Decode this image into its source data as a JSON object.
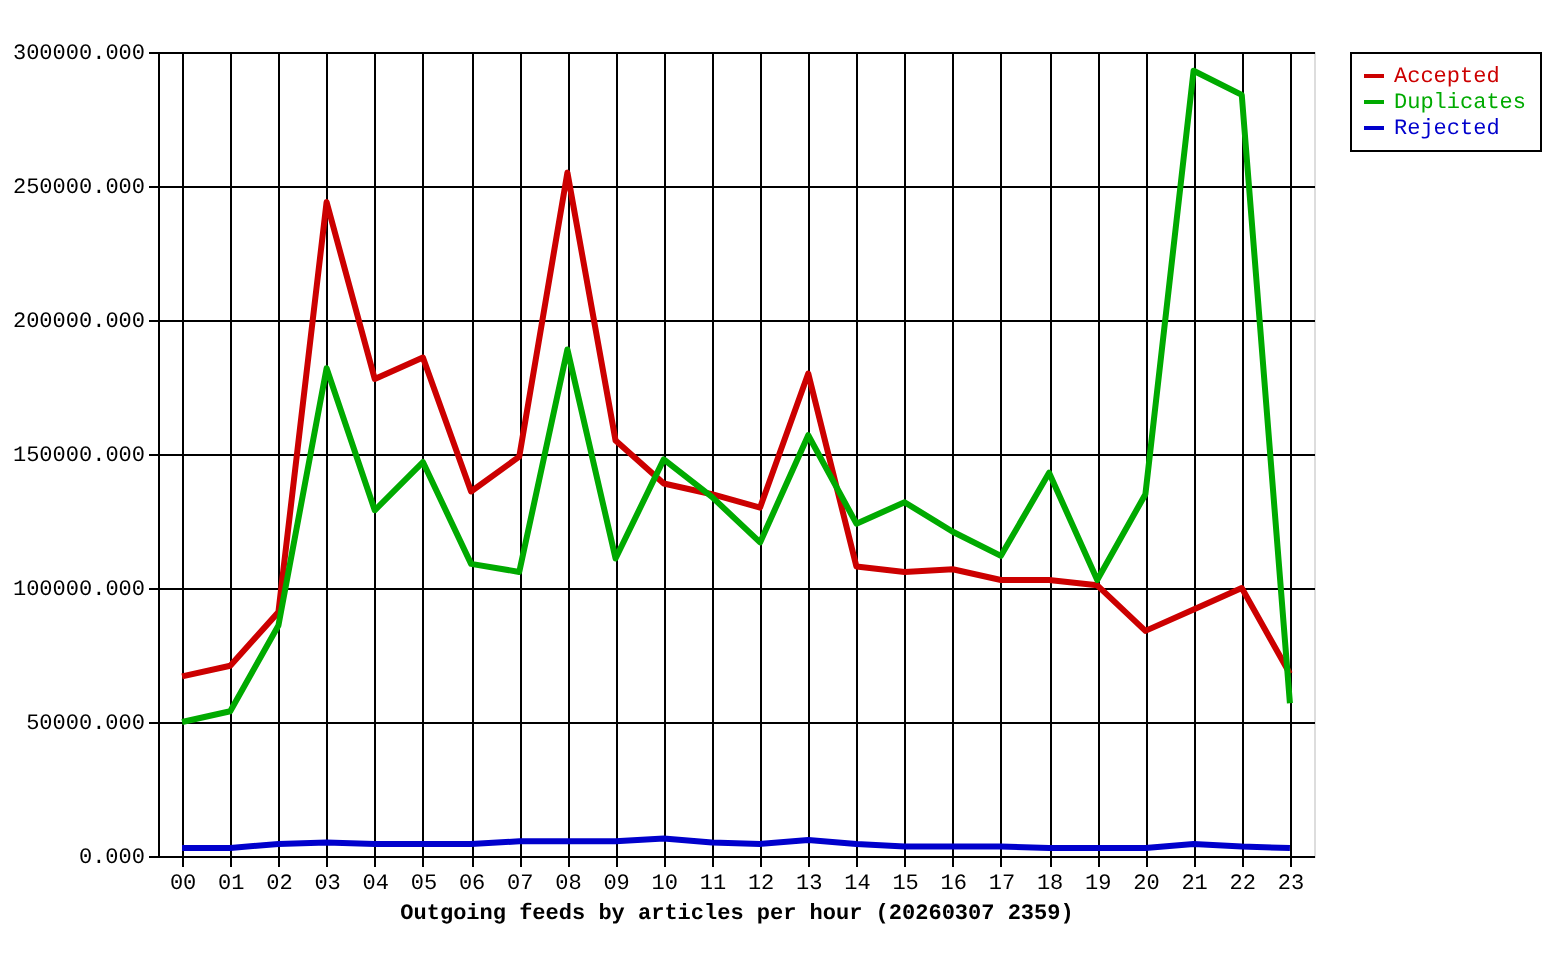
{
  "chart_data": {
    "type": "line",
    "xlabel": "Outgoing feeds by articles per hour (20260307 2359)",
    "categories": [
      "00",
      "01",
      "02",
      "03",
      "04",
      "05",
      "06",
      "07",
      "08",
      "09",
      "10",
      "11",
      "12",
      "13",
      "14",
      "15",
      "16",
      "17",
      "18",
      "19",
      "20",
      "21",
      "22",
      "23"
    ],
    "series": [
      {
        "name": "Accepted",
        "color": "#cc0000",
        "values": [
          67000,
          71000,
          91000,
          244000,
          178000,
          186000,
          136000,
          149000,
          255000,
          155000,
          139000,
          135000,
          130000,
          180000,
          108000,
          106000,
          107000,
          103000,
          103000,
          101000,
          84000,
          92000,
          100000,
          68000
        ]
      },
      {
        "name": "Duplicates",
        "color": "#00aa00",
        "values": [
          50000,
          54000,
          86000,
          182000,
          129000,
          147000,
          109000,
          106000,
          189000,
          111000,
          148000,
          134000,
          117000,
          157000,
          124000,
          132000,
          121000,
          112000,
          143000,
          103000,
          135000,
          293000,
          284000,
          57000
        ]
      },
      {
        "name": "Rejected",
        "color": "#0000cc",
        "values": [
          3000,
          3000,
          4500,
          5000,
          4500,
          4500,
          4500,
          5500,
          5500,
          5500,
          6500,
          5000,
          4500,
          6000,
          4500,
          3500,
          3500,
          3500,
          3000,
          3000,
          3000,
          4500,
          3500,
          3000
        ]
      }
    ],
    "ylim": [
      0,
      300000
    ],
    "yticks": [
      {
        "value": 0,
        "label": "0.000"
      },
      {
        "value": 50000,
        "label": "50000.000"
      },
      {
        "value": 100000,
        "label": "100000.000"
      },
      {
        "value": 150000,
        "label": "150000.000"
      },
      {
        "value": 200000,
        "label": "200000.000"
      },
      {
        "value": 250000,
        "label": "250000.000"
      },
      {
        "value": 300000,
        "label": "300000.000"
      }
    ],
    "grid": true,
    "legend": "top right",
    "marker": "none",
    "line_style": "solid"
  }
}
